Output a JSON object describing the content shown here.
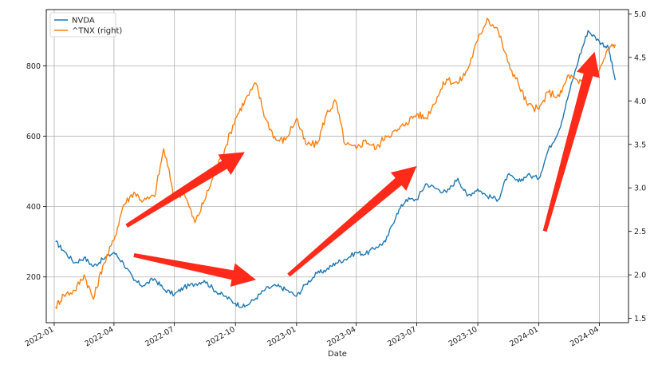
{
  "chart_data": {
    "type": "line",
    "title": "",
    "xlabel": "Date",
    "x_ticks": [
      "2022-01",
      "2022-04",
      "2022-07",
      "2022-10",
      "2023-01",
      "2023-04",
      "2023-07",
      "2023-10",
      "2024-01",
      "2024-04"
    ],
    "x_range": [
      "2021-12-20",
      "2024-05-15"
    ],
    "y_left": {
      "ticks": [
        200,
        400,
        600,
        800
      ],
      "range": [
        70,
        960
      ]
    },
    "y_right": {
      "ticks": [
        "1.5",
        "2.0",
        "2.5",
        "3.0",
        "3.5",
        "4.0",
        "4.5",
        "5.0"
      ],
      "range": [
        1.45,
        5.05
      ]
    },
    "grid": true,
    "legend_position": "top-left",
    "series": [
      {
        "name": "NVDA",
        "axis": "left",
        "color": "#1f77b4",
        "points": [
          [
            "2022-01-03",
            300
          ],
          [
            "2022-01-15",
            275
          ],
          [
            "2022-02-01",
            240
          ],
          [
            "2022-02-15",
            255
          ],
          [
            "2022-03-01",
            230
          ],
          [
            "2022-03-15",
            250
          ],
          [
            "2022-04-01",
            270
          ],
          [
            "2022-04-15",
            240
          ],
          [
            "2022-05-01",
            190
          ],
          [
            "2022-05-15",
            175
          ],
          [
            "2022-06-01",
            195
          ],
          [
            "2022-06-15",
            165
          ],
          [
            "2022-07-01",
            150
          ],
          [
            "2022-07-15",
            170
          ],
          [
            "2022-08-01",
            180
          ],
          [
            "2022-08-15",
            190
          ],
          [
            "2022-09-01",
            160
          ],
          [
            "2022-09-15",
            145
          ],
          [
            "2022-10-01",
            125
          ],
          [
            "2022-10-15",
            115
          ],
          [
            "2022-11-01",
            140
          ],
          [
            "2022-11-15",
            165
          ],
          [
            "2022-12-01",
            175
          ],
          [
            "2022-12-15",
            165
          ],
          [
            "2023-01-01",
            145
          ],
          [
            "2023-01-15",
            180
          ],
          [
            "2023-02-01",
            210
          ],
          [
            "2023-02-15",
            220
          ],
          [
            "2023-03-01",
            240
          ],
          [
            "2023-03-15",
            250
          ],
          [
            "2023-04-01",
            270
          ],
          [
            "2023-04-15",
            265
          ],
          [
            "2023-05-01",
            285
          ],
          [
            "2023-05-15",
            300
          ],
          [
            "2023-06-01",
            380
          ],
          [
            "2023-06-15",
            420
          ],
          [
            "2023-07-01",
            420
          ],
          [
            "2023-07-15",
            465
          ],
          [
            "2023-08-01",
            450
          ],
          [
            "2023-08-15",
            440
          ],
          [
            "2023-09-01",
            480
          ],
          [
            "2023-09-15",
            430
          ],
          [
            "2023-10-01",
            450
          ],
          [
            "2023-10-15",
            430
          ],
          [
            "2023-11-01",
            420
          ],
          [
            "2023-11-15",
            490
          ],
          [
            "2023-12-01",
            470
          ],
          [
            "2023-12-15",
            490
          ],
          [
            "2024-01-01",
            480
          ],
          [
            "2024-01-15",
            560
          ],
          [
            "2024-02-01",
            620
          ],
          [
            "2024-02-15",
            720
          ],
          [
            "2024-03-01",
            820
          ],
          [
            "2024-03-15",
            900
          ],
          [
            "2024-04-01",
            870
          ],
          [
            "2024-04-15",
            850
          ],
          [
            "2024-04-25",
            760
          ]
        ]
      },
      {
        "name": "^TNX (right)",
        "axis": "right",
        "color": "#ff7f0e",
        "points": [
          [
            "2022-01-03",
            1.63
          ],
          [
            "2022-01-15",
            1.77
          ],
          [
            "2022-02-01",
            1.82
          ],
          [
            "2022-02-15",
            2.0
          ],
          [
            "2022-03-01",
            1.72
          ],
          [
            "2022-03-15",
            2.1
          ],
          [
            "2022-04-01",
            2.4
          ],
          [
            "2022-04-15",
            2.8
          ],
          [
            "2022-05-01",
            2.95
          ],
          [
            "2022-05-15",
            2.85
          ],
          [
            "2022-06-01",
            2.9
          ],
          [
            "2022-06-15",
            3.45
          ],
          [
            "2022-07-01",
            2.9
          ],
          [
            "2022-07-15",
            2.95
          ],
          [
            "2022-08-01",
            2.6
          ],
          [
            "2022-08-15",
            2.85
          ],
          [
            "2022-09-01",
            3.2
          ],
          [
            "2022-09-15",
            3.45
          ],
          [
            "2022-10-01",
            3.8
          ],
          [
            "2022-10-15",
            4.0
          ],
          [
            "2022-11-01",
            4.2
          ],
          [
            "2022-11-15",
            3.8
          ],
          [
            "2022-12-01",
            3.55
          ],
          [
            "2022-12-15",
            3.55
          ],
          [
            "2023-01-01",
            3.8
          ],
          [
            "2023-01-15",
            3.5
          ],
          [
            "2023-02-01",
            3.5
          ],
          [
            "2023-02-15",
            3.85
          ],
          [
            "2023-03-01",
            4.0
          ],
          [
            "2023-03-15",
            3.5
          ],
          [
            "2023-04-01",
            3.45
          ],
          [
            "2023-04-15",
            3.55
          ],
          [
            "2023-05-01",
            3.45
          ],
          [
            "2023-05-15",
            3.6
          ],
          [
            "2023-06-01",
            3.65
          ],
          [
            "2023-06-15",
            3.75
          ],
          [
            "2023-07-01",
            3.85
          ],
          [
            "2023-07-15",
            3.8
          ],
          [
            "2023-08-01",
            4.05
          ],
          [
            "2023-08-15",
            4.25
          ],
          [
            "2023-09-01",
            4.2
          ],
          [
            "2023-09-15",
            4.35
          ],
          [
            "2023-10-01",
            4.7
          ],
          [
            "2023-10-15",
            4.95
          ],
          [
            "2023-11-01",
            4.8
          ],
          [
            "2023-11-15",
            4.45
          ],
          [
            "2023-12-01",
            4.2
          ],
          [
            "2023-12-15",
            3.95
          ],
          [
            "2024-01-01",
            3.9
          ],
          [
            "2024-01-15",
            4.1
          ],
          [
            "2024-02-01",
            4.05
          ],
          [
            "2024-02-15",
            4.3
          ],
          [
            "2024-03-01",
            4.2
          ],
          [
            "2024-03-15",
            4.3
          ],
          [
            "2024-04-01",
            4.35
          ],
          [
            "2024-04-15",
            4.6
          ],
          [
            "2024-04-25",
            4.65
          ]
        ]
      }
    ],
    "annotations": [
      {
        "type": "arrow",
        "color": "#ff2a1a",
        "from": [
          "2022-04-20",
          345
        ],
        "to": [
          "2022-10-15",
          555
        ]
      },
      {
        "type": "arrow",
        "color": "#ff2a1a",
        "from": [
          "2022-05-01",
          262
        ],
        "to": [
          "2022-11-01",
          192
        ]
      },
      {
        "type": "arrow",
        "color": "#ff2a1a",
        "from": [
          "2022-12-20",
          205
        ],
        "to": [
          "2023-07-01",
          515
        ]
      },
      {
        "type": "arrow",
        "color": "#ff2a1a",
        "from": [
          "2024-01-10",
          330
        ],
        "to": [
          "2024-03-25",
          840
        ]
      }
    ]
  }
}
